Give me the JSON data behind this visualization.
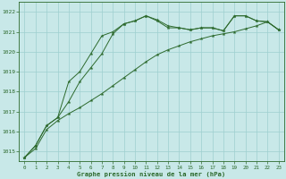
{
  "line1": {
    "x": [
      0,
      1,
      2,
      3,
      4,
      5,
      6,
      7,
      8,
      9,
      10,
      11,
      12,
      13,
      14,
      15,
      16,
      17,
      18,
      19,
      20,
      21,
      22,
      23
    ],
    "y": [
      1014.7,
      1015.3,
      1016.3,
      1016.7,
      1018.5,
      1019.0,
      1019.9,
      1020.8,
      1021.0,
      1021.4,
      1021.55,
      1021.8,
      1021.55,
      1021.2,
      1021.2,
      1021.1,
      1021.2,
      1021.2,
      1021.05,
      1021.8,
      1021.8,
      1021.55,
      1021.5,
      1021.1
    ]
  },
  "line2": {
    "x": [
      0,
      1,
      2,
      3,
      4,
      5,
      6,
      7,
      8,
      9,
      10,
      11,
      12,
      13,
      14,
      15,
      16,
      17,
      18,
      19,
      20,
      21,
      22,
      23
    ],
    "y": [
      1014.7,
      1015.3,
      1016.3,
      1016.7,
      1017.5,
      1018.5,
      1019.2,
      1019.9,
      1020.9,
      1021.4,
      1021.55,
      1021.8,
      1021.6,
      1021.3,
      1021.2,
      1021.1,
      1021.2,
      1021.2,
      1021.05,
      1021.8,
      1021.8,
      1021.55,
      1021.5,
      1021.1
    ]
  },
  "line3": {
    "x": [
      0,
      1,
      2,
      3,
      4,
      5,
      6,
      7,
      8,
      9,
      10,
      11,
      12,
      13,
      14,
      15,
      16,
      17,
      18,
      19,
      20,
      21,
      22,
      23
    ],
    "y": [
      1014.7,
      1015.15,
      1016.1,
      1016.55,
      1016.9,
      1017.2,
      1017.55,
      1017.9,
      1018.3,
      1018.7,
      1019.1,
      1019.5,
      1019.85,
      1020.1,
      1020.3,
      1020.5,
      1020.65,
      1020.8,
      1020.9,
      1021.0,
      1021.15,
      1021.3,
      1021.5,
      1021.1
    ]
  },
  "line_color": "#2d6a2d",
  "bg_color": "#c8e8e8",
  "grid_color": "#9ecfcf",
  "xlabel": "Graphe pression niveau de la mer (hPa)",
  "ylim": [
    1014.5,
    1022.5
  ],
  "xlim": [
    -0.5,
    23.5
  ],
  "yticks": [
    1015,
    1016,
    1017,
    1018,
    1019,
    1020,
    1021,
    1022
  ],
  "xticks": [
    0,
    1,
    2,
    3,
    4,
    5,
    6,
    7,
    8,
    9,
    10,
    11,
    12,
    13,
    14,
    15,
    16,
    17,
    18,
    19,
    20,
    21,
    22,
    23
  ],
  "fig_width": 3.2,
  "fig_height": 2.0
}
